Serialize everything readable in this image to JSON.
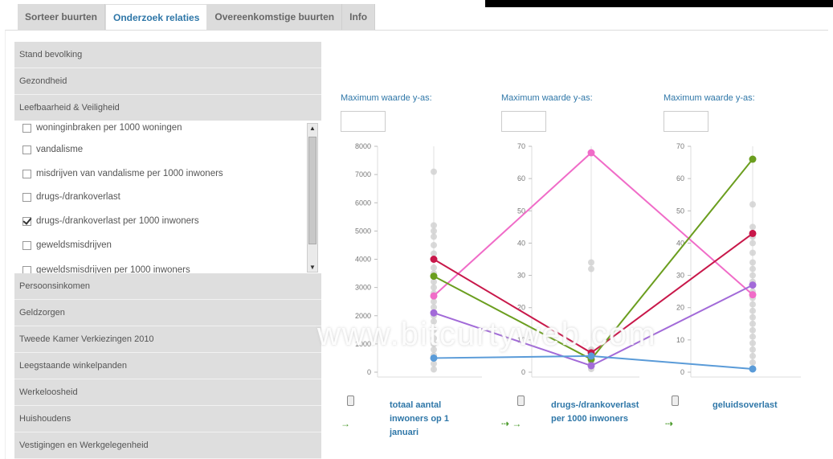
{
  "tabs": [
    "Sorteer buurten",
    "Onderzoek relaties",
    "Overeenkomstige buurten",
    "Info"
  ],
  "accordion_top": [
    "Stand bevolking",
    "Gezondheid",
    "Leefbaarheid & Veiligheid"
  ],
  "checklist": [
    {
      "label": "woninginbraken per 1000 woningen",
      "checked": false
    },
    {
      "label": "vandalisme",
      "checked": false
    },
    {
      "label": "misdrijven van vandalisme per 1000 inwoners",
      "checked": false
    },
    {
      "label": "drugs-/drankoverlast",
      "checked": false
    },
    {
      "label": "drugs-/drankoverlast per 1000 inwoners",
      "checked": true
    },
    {
      "label": "geweldsmisdrijven",
      "checked": false
    },
    {
      "label": "geweldsmisdrijven per 1000 inwoners",
      "checked": false
    }
  ],
  "accordion_bottom": [
    "Persoonsinkomen",
    "Geldzorgen",
    "Tweede Kamer Verkiezingen 2010",
    "Leegstaande winkelpanden",
    "Werkeloosheid",
    "Huishoudens",
    "Vestigingen en Werkgelegenheid"
  ],
  "max_label": "Maximum waarde y-as:",
  "watermark": "www.bitcurtyweb.com",
  "chart_data": {
    "type": "line",
    "axes": [
      {
        "label": "totaal aantal inwoners op 1 januari",
        "ticks": [
          0,
          1000,
          2000,
          3000,
          4000,
          5000,
          6000,
          7000,
          8000
        ],
        "tick_labels": [
          "0",
          "1000",
          "2000",
          "3000",
          "4000",
          "5000",
          "6000",
          "7000",
          "8000"
        ],
        "max": 8000
      },
      {
        "label": "drugs-/drankoverlast per 1000 inwoners",
        "ticks": [
          0,
          10,
          20,
          30,
          40,
          50,
          60,
          70
        ],
        "tick_labels": [
          "0",
          "10",
          "20",
          "30",
          "40",
          "50",
          "60",
          "70"
        ],
        "max": 70
      },
      {
        "label": "geluidsoverlast",
        "ticks": [
          0,
          10,
          20,
          30,
          40,
          50,
          60,
          70
        ],
        "tick_labels": [
          "0",
          "10",
          "20",
          "30",
          "40",
          "50",
          "60",
          "70"
        ],
        "max": 70
      }
    ],
    "series": [
      {
        "color": "#f06cc8",
        "values": [
          2700,
          68,
          24
        ]
      },
      {
        "color": "#c8184a",
        "values": [
          4000,
          6,
          43
        ]
      },
      {
        "color": "#6b9e1f",
        "values": [
          3400,
          4,
          66
        ]
      },
      {
        "color": "#a26ad8",
        "values": [
          2100,
          2,
          27
        ]
      },
      {
        "color": "#5a9bd8",
        "values": [
          500,
          5,
          1
        ]
      }
    ],
    "background_points": [
      [
        100,
        300,
        600,
        800,
        1000,
        1200,
        1500,
        1800,
        2000,
        2300,
        2500,
        2800,
        3000,
        3200,
        3500,
        3700,
        4200,
        4500,
        4800,
        5000,
        5200,
        7100
      ],
      [
        1,
        2,
        3,
        3,
        4,
        5,
        6,
        7,
        32,
        34
      ],
      [
        1,
        3,
        5,
        7,
        9,
        11,
        13,
        15,
        17,
        19,
        21,
        23,
        25,
        28,
        30,
        32,
        34,
        37,
        40,
        42,
        45,
        52
      ]
    ]
  }
}
